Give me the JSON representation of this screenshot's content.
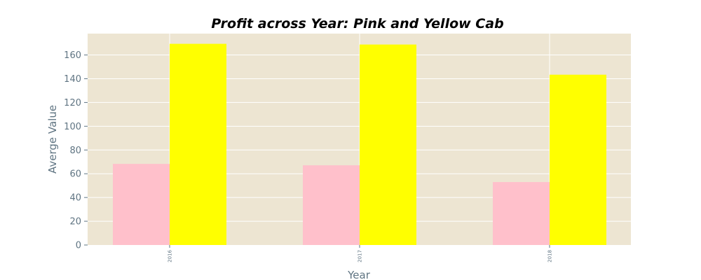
{
  "chart_data": {
    "type": "bar",
    "title": "Profit across Year: Pink and Yellow Cab",
    "xlabel": "Year",
    "ylabel": "Averge Value",
    "categories": [
      "2016",
      "2017",
      "2018"
    ],
    "series": [
      {
        "color": "#ffc0cb",
        "values": [
          68.3,
          67.1,
          53.0
        ]
      },
      {
        "color": "#ffff00",
        "values": [
          169.4,
          168.8,
          143.4
        ]
      }
    ],
    "ylim": [
      0,
      178
    ],
    "yticks": [
      0,
      20,
      40,
      60,
      80,
      100,
      120,
      140,
      160
    ],
    "grid": true,
    "legend": "none",
    "colors": {
      "plot_background": "#ede5d2",
      "grid": "#ffffff",
      "tick_text": "#5f7482",
      "title": "#000000"
    }
  }
}
